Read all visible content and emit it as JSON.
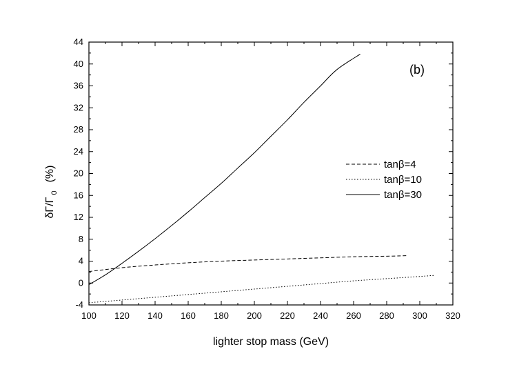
{
  "chart_data": {
    "type": "line",
    "panel_label": "(b)",
    "xlabel": "lighter stop mass  (GeV)",
    "ylabel_main": "δΓ/Γ",
    "ylabel_sub": "0",
    "ylabel_unit": "(%)",
    "xlim": [
      100,
      320
    ],
    "ylim": [
      -4,
      44
    ],
    "x_major_ticks": [
      100,
      120,
      140,
      160,
      180,
      200,
      220,
      240,
      260,
      280,
      300,
      320
    ],
    "y_major_ticks": [
      -4,
      0,
      4,
      8,
      12,
      16,
      20,
      24,
      28,
      32,
      36,
      40,
      44
    ],
    "grid": false,
    "legend_position": "right",
    "series": [
      {
        "name": "tanβ=4",
        "style": "dashed",
        "x": [
          100,
          120,
          140,
          160,
          180,
          200,
          220,
          240,
          260,
          280,
          293
        ],
        "y": [
          2.1,
          2.8,
          3.3,
          3.7,
          4.0,
          4.2,
          4.4,
          4.6,
          4.8,
          4.9,
          5.0
        ]
      },
      {
        "name": "tanβ=10",
        "style": "dotted",
        "x": [
          100,
          120,
          140,
          160,
          180,
          200,
          220,
          240,
          260,
          280,
          300,
          309
        ],
        "y": [
          -3.6,
          -3.1,
          -2.6,
          -2.1,
          -1.6,
          -1.1,
          -0.6,
          -0.1,
          0.4,
          0.8,
          1.2,
          1.4
        ]
      },
      {
        "name": "tanβ=30",
        "style": "solid",
        "x": [
          100,
          110,
          120,
          130,
          140,
          150,
          160,
          170,
          180,
          190,
          200,
          210,
          220,
          230,
          240,
          250,
          264
        ],
        "y": [
          -0.3,
          1.5,
          3.6,
          5.8,
          8.1,
          10.5,
          13.0,
          15.6,
          18.2,
          21.0,
          23.8,
          26.8,
          29.8,
          33.0,
          36.0,
          39.0,
          41.8
        ]
      }
    ]
  }
}
